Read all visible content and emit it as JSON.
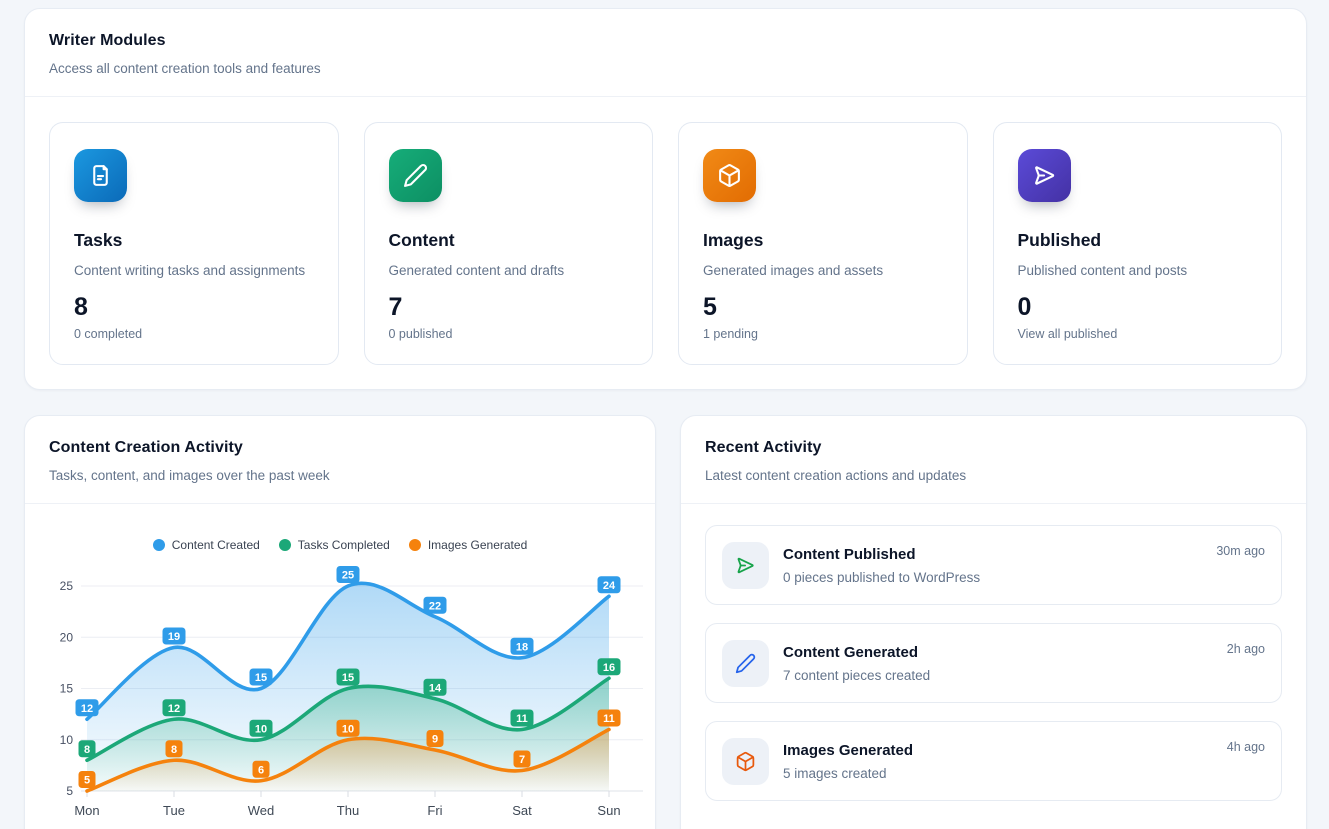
{
  "writer_modules": {
    "title": "Writer Modules",
    "subtitle": "Access all content creation tools and features",
    "cards": [
      {
        "title": "Tasks",
        "description": "Content writing tasks and assignments",
        "count": "8",
        "sub": "0 completed",
        "icon": "file-icon",
        "color_from": "#1b98e0",
        "color_to": "#0b6ab8"
      },
      {
        "title": "Content",
        "description": "Generated content and drafts",
        "count": "7",
        "sub": "0 published",
        "icon": "pencil-icon",
        "color_from": "#16ad79",
        "color_to": "#0d8f63"
      },
      {
        "title": "Images",
        "description": "Generated images and assets",
        "count": "5",
        "sub": "1 pending",
        "icon": "cube-icon",
        "color_from": "#f18a16",
        "color_to": "#e26c02"
      },
      {
        "title": "Published",
        "description": "Published content and posts",
        "count": "0",
        "sub": "View all published",
        "icon": "send-icon",
        "color_from": "#5b4bd8",
        "color_to": "#4431a4"
      }
    ]
  },
  "activity_chart": {
    "title": "Content Creation Activity",
    "subtitle": "Tasks, content, and images over the past week"
  },
  "chart_data": {
    "type": "line",
    "categories": [
      "Mon",
      "Tue",
      "Wed",
      "Thu",
      "Fri",
      "Sat",
      "Sun"
    ],
    "series": [
      {
        "name": "Content Created",
        "color": "#2f9ce9",
        "values": [
          12,
          19,
          15,
          25,
          22,
          18,
          24
        ]
      },
      {
        "name": "Tasks Completed",
        "color": "#1ca878",
        "values": [
          8,
          12,
          10,
          15,
          14,
          11,
          16
        ]
      },
      {
        "name": "Images Generated",
        "color": "#f5820d",
        "values": [
          5,
          8,
          6,
          10,
          9,
          7,
          11
        ]
      }
    ],
    "ylim": [
      5,
      25
    ],
    "yticks": [
      5,
      10,
      15,
      20,
      25
    ],
    "grid": true,
    "legend_position": "top",
    "area_fill": true,
    "point_labels": true,
    "xlabel": "",
    "ylabel": ""
  },
  "recent_activity": {
    "title": "Recent Activity",
    "subtitle": "Latest content creation actions and updates",
    "items": [
      {
        "title": "Content Published",
        "description": "0 pieces published to WordPress",
        "time": "30m ago",
        "icon": "send-icon",
        "icon_color": "#17a34a"
      },
      {
        "title": "Content Generated",
        "description": "7 content pieces created",
        "time": "2h ago",
        "icon": "pencil-icon",
        "icon_color": "#2563eb"
      },
      {
        "title": "Images Generated",
        "description": "5 images created",
        "time": "4h ago",
        "icon": "cube-icon",
        "icon_color": "#e8590c"
      }
    ]
  }
}
